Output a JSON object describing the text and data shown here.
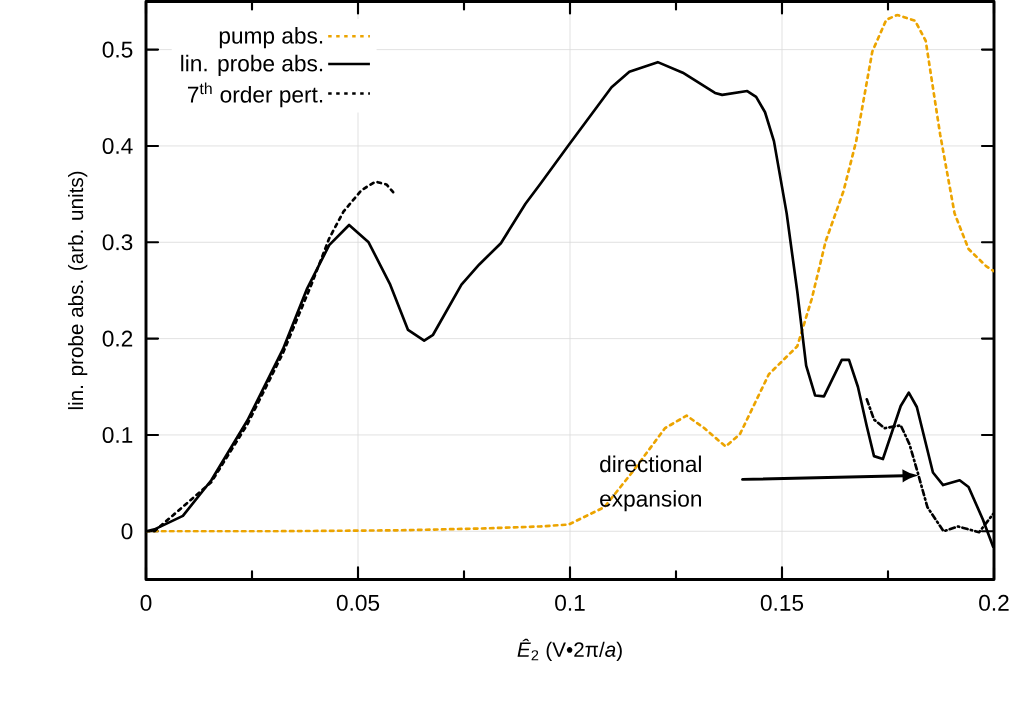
{
  "chart_data": {
    "type": "line",
    "xlabel": "*Ê*$_{2}$ (V•2π/*a*)",
    "ylabel": "lin. probe abs. (arb. units)",
    "xlim": [
      0,
      0.2
    ],
    "ylim": [
      -0.05,
      0.55
    ],
    "xticks": [
      0,
      {
        "value": 0.025,
        "label": null
      },
      0.05,
      {
        "value": 0.075,
        "label": null
      },
      0.1,
      {
        "value": 0.125,
        "label": null
      },
      0.15,
      {
        "value": 0.175,
        "label": null
      },
      0.2
    ],
    "yticks": [
      0,
      0.1,
      0.2,
      0.3,
      0.4,
      0.5
    ],
    "grid": true,
    "legend": "top left",
    "series": [
      {
        "name": "pump abs.",
        "color": "#eca400",
        "line_style": "dotted",
        "x": [
          0,
          0.03,
          0.06,
          0.08,
          0.0929,
          0.0997,
          0.1081,
          0.1148,
          0.1224,
          0.1275,
          0.1317,
          0.1367,
          0.1401,
          0.1469,
          0.1536,
          0.157,
          0.1603,
          0.1645,
          0.1675,
          0.1713,
          0.1746,
          0.1772,
          0.1814,
          0.1839,
          0.1873,
          0.1907,
          0.194,
          0.1982,
          0.2
        ],
        "values": [
          0,
          0,
          0.001,
          0.003,
          0.005,
          0.007,
          0.025,
          0.062,
          0.107,
          0.12,
          0.107,
          0.088,
          0.101,
          0.163,
          0.192,
          0.241,
          0.301,
          0.353,
          0.405,
          0.498,
          0.531,
          0.536,
          0.53,
          0.509,
          0.412,
          0.33,
          0.293,
          0.275,
          0.27
        ]
      },
      {
        "name": "lin. probe abs.",
        "color": "#000000",
        "line_style": "solid",
        "x": [
          0,
          0.002,
          0.0087,
          0.0154,
          0.0239,
          0.0323,
          0.038,
          0.0432,
          0.0479,
          0.0525,
          0.0576,
          0.0618,
          0.0656,
          0.0677,
          0.0744,
          0.0786,
          0.0837,
          0.0895,
          0.0929,
          0.0997,
          0.1098,
          0.114,
          0.1207,
          0.1266,
          0.1342,
          0.1359,
          0.1418,
          0.1439,
          0.146,
          0.1481,
          0.1511,
          0.1536,
          0.1557,
          0.1578,
          0.1599,
          0.1641,
          0.1658,
          0.1679,
          0.17,
          0.1717,
          0.1738,
          0.178,
          0.1799,
          0.1818,
          0.1856,
          0.188,
          0.1919,
          0.194,
          0.1974,
          0.1998
        ],
        "values": [
          0,
          0.002,
          0.016,
          0.053,
          0.115,
          0.189,
          0.252,
          0.297,
          0.318,
          0.3,
          0.256,
          0.209,
          0.198,
          0.204,
          0.256,
          0.277,
          0.299,
          0.34,
          0.36,
          0.401,
          0.461,
          0.477,
          0.487,
          0.476,
          0.455,
          0.453,
          0.457,
          0.451,
          0.435,
          0.405,
          0.33,
          0.249,
          0.172,
          0.141,
          0.14,
          0.178,
          0.178,
          0.15,
          0.109,
          0.078,
          0.075,
          0.13,
          0.144,
          0.129,
          0.061,
          0.048,
          0.053,
          0.046,
          0.012,
          -0.016
        ]
      },
      {
        "name": "7$^{th}$ order pert.",
        "color": "#000000",
        "line_style": "dotted",
        "x": [
          0,
          0.002,
          0.0154,
          0.0239,
          0.0323,
          0.039,
          0.0432,
          0.0466,
          0.0508,
          0.0541,
          0.0567,
          0.0583
        ],
        "values": [
          0,
          0,
          0.051,
          0.111,
          0.185,
          0.256,
          0.304,
          0.332,
          0.354,
          0.363,
          0.36,
          0.352
        ]
      },
      {
        "color": "#000000",
        "line_style": "dashdot",
        "x": [
          0.17,
          0.1717,
          0.1742,
          0.178,
          0.1801,
          0.1822,
          0.1843,
          0.1881,
          0.1915,
          0.1965,
          0.1998
        ],
        "values": [
          0.137,
          0.116,
          0.107,
          0.11,
          0.09,
          0.058,
          0.025,
          0,
          0.005,
          -0.001,
          0.018
        ]
      }
    ],
    "annotations": [
      "directional expansion"
    ]
  }
}
